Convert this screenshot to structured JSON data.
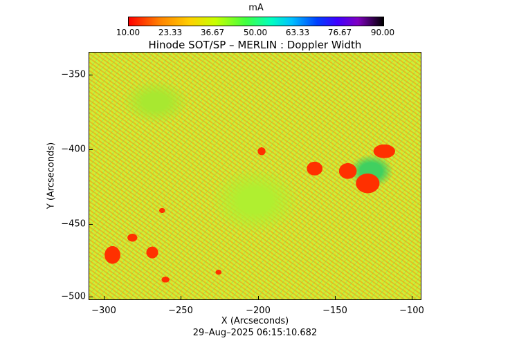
{
  "colorbar": {
    "unit": "mA",
    "ticks": [
      "10.00",
      "23.33",
      "36.67",
      "50.00",
      "63.33",
      "76.67",
      "90.00"
    ]
  },
  "title": "Hinode SOT/SP – MERLIN : Doppler Width",
  "x_axis": {
    "label": "X (Arcseconds)",
    "ticks": [
      "−300",
      "−250",
      "−200",
      "−150",
      "−100"
    ]
  },
  "y_axis": {
    "label": "Y (Arcseconds)",
    "ticks": [
      "−350",
      "−400",
      "−450",
      "−500"
    ]
  },
  "timestamp": "29–Aug–2025 06:15:10.682",
  "colors": {
    "map_background": "#c8f040",
    "sunspot": "#ff3000"
  }
}
